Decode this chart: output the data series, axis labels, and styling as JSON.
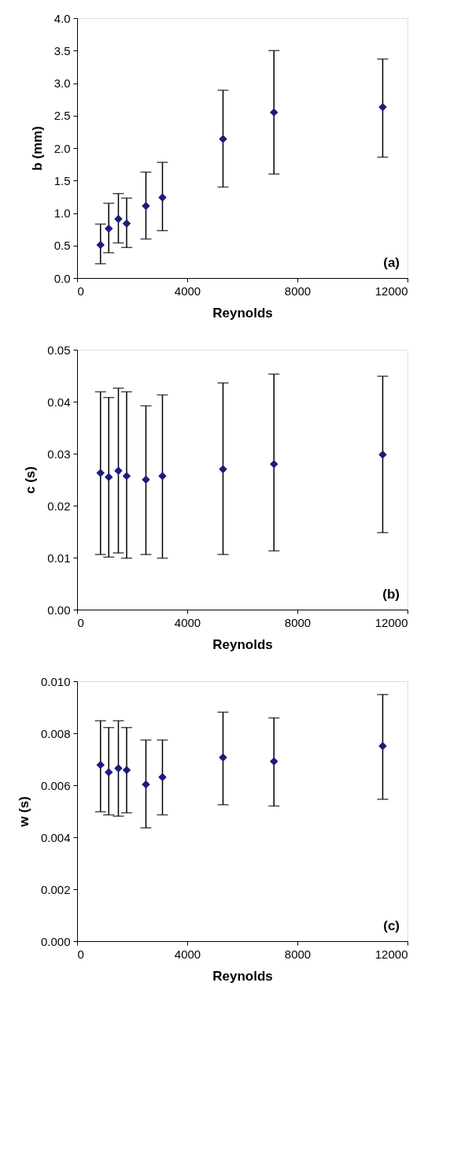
{
  "chart_data": [
    {
      "type": "scatter",
      "xlabel": "Reynolds",
      "ylabel": "b (mm)",
      "annotations": [
        "(a)"
      ],
      "marker": "diamond",
      "grid": false,
      "color": "#1c1c7a",
      "x": [
        850,
        1150,
        1500,
        1800,
        2500,
        3100,
        5300,
        7150,
        11100
      ],
      "values": [
        0.51,
        0.76,
        0.91,
        0.84,
        1.11,
        1.24,
        2.14,
        2.55,
        2.63
      ],
      "errors": [
        [
          0.22,
          0.83
        ],
        [
          0.39,
          1.15
        ],
        [
          0.54,
          1.3
        ],
        [
          0.47,
          1.23
        ],
        [
          0.6,
          1.63
        ],
        [
          0.73,
          1.78
        ],
        [
          1.4,
          2.89
        ],
        [
          1.6,
          3.5
        ],
        [
          1.86,
          3.37
        ]
      ],
      "xlim": [
        0,
        12000
      ],
      "xticks": [
        0,
        4000,
        8000,
        12000
      ],
      "ylim": [
        0,
        4
      ],
      "yticks": [
        {
          "value": 0,
          "label": "0.0"
        },
        0.5,
        {
          "value": 1,
          "label": "1.0"
        },
        1.5,
        {
          "value": 2,
          "label": "2.0"
        },
        2.5,
        {
          "value": 3,
          "label": "3.0"
        },
        3.5,
        {
          "value": 4,
          "label": "4.0"
        }
      ]
    },
    {
      "type": "scatter",
      "xlabel": "Reynolds",
      "ylabel": "c (s)",
      "annotations": [
        "(b)"
      ],
      "marker": "diamond",
      "grid": false,
      "color": "#1c1c7a",
      "x": [
        850,
        1150,
        1500,
        1800,
        2500,
        3100,
        5300,
        7150,
        11100
      ],
      "values": [
        0.0263,
        0.0255,
        0.0267,
        0.0257,
        0.025,
        0.0257,
        0.027,
        0.028,
        0.0298
      ],
      "errors": [
        [
          0.0106,
          0.0419
        ],
        [
          0.0101,
          0.0408
        ],
        [
          0.0109,
          0.0426
        ],
        [
          0.0099,
          0.0419
        ],
        [
          0.0106,
          0.0392
        ],
        [
          0.0099,
          0.0413
        ],
        [
          0.0106,
          0.0436
        ],
        [
          0.0113,
          0.0453
        ],
        [
          0.0148,
          0.0449
        ]
      ],
      "xlim": [
        0,
        12000
      ],
      "xticks": [
        0,
        4000,
        8000,
        12000
      ],
      "ylim": [
        0,
        0.05
      ],
      "yticks": [
        {
          "value": 0,
          "label": "0.00"
        },
        0.01,
        0.02,
        0.03,
        0.04,
        0.05
      ]
    },
    {
      "type": "scatter",
      "xlabel": "Reynolds",
      "ylabel": "w (s)",
      "annotations": [
        "(c)"
      ],
      "marker": "diamond",
      "grid": false,
      "color": "#1c1c7a",
      "x": [
        850,
        1150,
        1500,
        1800,
        2500,
        3100,
        5300,
        7150,
        11100
      ],
      "values": [
        0.00678,
        0.0065,
        0.00665,
        0.00658,
        0.00603,
        0.00631,
        0.00707,
        0.00692,
        0.00751
      ],
      "errors": [
        [
          0.00498,
          0.00848
        ],
        [
          0.00486,
          0.00822
        ],
        [
          0.00481,
          0.00848
        ],
        [
          0.00494,
          0.00822
        ],
        [
          0.00436,
          0.00774
        ],
        [
          0.00486,
          0.00774
        ],
        [
          0.00525,
          0.00881
        ],
        [
          0.0052,
          0.00859
        ],
        [
          0.00546,
          0.00949
        ]
      ],
      "xlim": [
        0,
        12000
      ],
      "xticks": [
        0,
        4000,
        8000,
        12000
      ],
      "ylim": [
        0,
        0.01
      ],
      "yticks": [
        {
          "value": 0,
          "label": "0.000"
        },
        0.002,
        0.004,
        0.006,
        0.008,
        {
          "value": 0.01,
          "label": "0.010"
        }
      ]
    }
  ]
}
